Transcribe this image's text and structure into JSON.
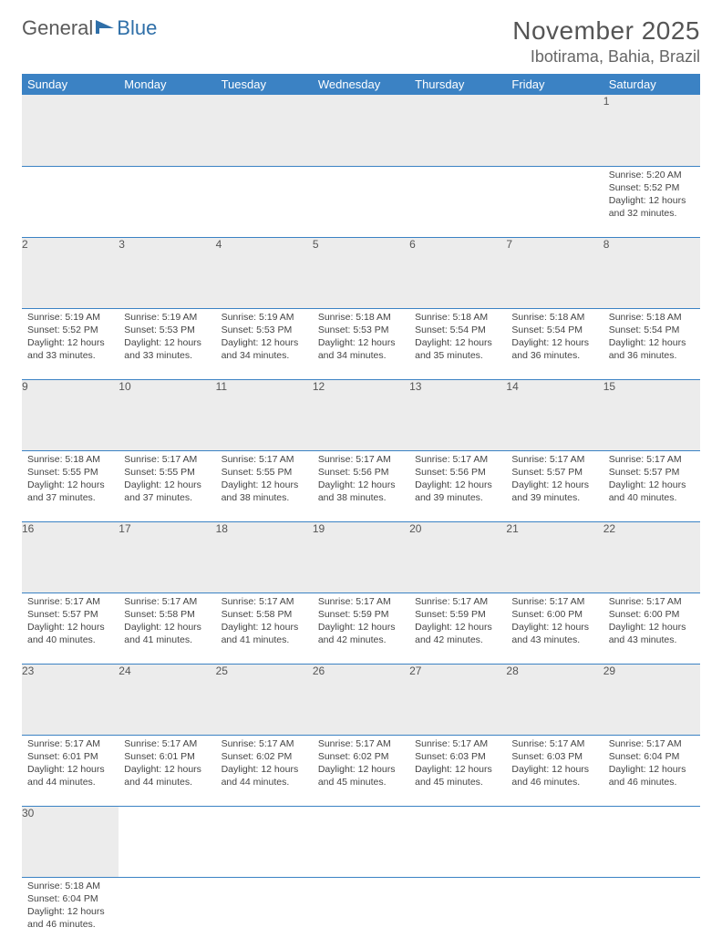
{
  "logo": {
    "text1": "General",
    "text2": "Blue"
  },
  "title": "November 2025",
  "location": "Ibotirama, Bahia, Brazil",
  "header_bg": "#3b82c4",
  "weekdays": [
    "Sunday",
    "Monday",
    "Tuesday",
    "Wednesday",
    "Thursday",
    "Friday",
    "Saturday"
  ],
  "weeks": [
    [
      null,
      null,
      null,
      null,
      null,
      null,
      {
        "n": "1",
        "sr": "5:20 AM",
        "ss": "5:52 PM",
        "dl": "12 hours and 32 minutes."
      }
    ],
    [
      {
        "n": "2",
        "sr": "5:19 AM",
        "ss": "5:52 PM",
        "dl": "12 hours and 33 minutes."
      },
      {
        "n": "3",
        "sr": "5:19 AM",
        "ss": "5:53 PM",
        "dl": "12 hours and 33 minutes."
      },
      {
        "n": "4",
        "sr": "5:19 AM",
        "ss": "5:53 PM",
        "dl": "12 hours and 34 minutes."
      },
      {
        "n": "5",
        "sr": "5:18 AM",
        "ss": "5:53 PM",
        "dl": "12 hours and 34 minutes."
      },
      {
        "n": "6",
        "sr": "5:18 AM",
        "ss": "5:54 PM",
        "dl": "12 hours and 35 minutes."
      },
      {
        "n": "7",
        "sr": "5:18 AM",
        "ss": "5:54 PM",
        "dl": "12 hours and 36 minutes."
      },
      {
        "n": "8",
        "sr": "5:18 AM",
        "ss": "5:54 PM",
        "dl": "12 hours and 36 minutes."
      }
    ],
    [
      {
        "n": "9",
        "sr": "5:18 AM",
        "ss": "5:55 PM",
        "dl": "12 hours and 37 minutes."
      },
      {
        "n": "10",
        "sr": "5:17 AM",
        "ss": "5:55 PM",
        "dl": "12 hours and 37 minutes."
      },
      {
        "n": "11",
        "sr": "5:17 AM",
        "ss": "5:55 PM",
        "dl": "12 hours and 38 minutes."
      },
      {
        "n": "12",
        "sr": "5:17 AM",
        "ss": "5:56 PM",
        "dl": "12 hours and 38 minutes."
      },
      {
        "n": "13",
        "sr": "5:17 AM",
        "ss": "5:56 PM",
        "dl": "12 hours and 39 minutes."
      },
      {
        "n": "14",
        "sr": "5:17 AM",
        "ss": "5:57 PM",
        "dl": "12 hours and 39 minutes."
      },
      {
        "n": "15",
        "sr": "5:17 AM",
        "ss": "5:57 PM",
        "dl": "12 hours and 40 minutes."
      }
    ],
    [
      {
        "n": "16",
        "sr": "5:17 AM",
        "ss": "5:57 PM",
        "dl": "12 hours and 40 minutes."
      },
      {
        "n": "17",
        "sr": "5:17 AM",
        "ss": "5:58 PM",
        "dl": "12 hours and 41 minutes."
      },
      {
        "n": "18",
        "sr": "5:17 AM",
        "ss": "5:58 PM",
        "dl": "12 hours and 41 minutes."
      },
      {
        "n": "19",
        "sr": "5:17 AM",
        "ss": "5:59 PM",
        "dl": "12 hours and 42 minutes."
      },
      {
        "n": "20",
        "sr": "5:17 AM",
        "ss": "5:59 PM",
        "dl": "12 hours and 42 minutes."
      },
      {
        "n": "21",
        "sr": "5:17 AM",
        "ss": "6:00 PM",
        "dl": "12 hours and 43 minutes."
      },
      {
        "n": "22",
        "sr": "5:17 AM",
        "ss": "6:00 PM",
        "dl": "12 hours and 43 minutes."
      }
    ],
    [
      {
        "n": "23",
        "sr": "5:17 AM",
        "ss": "6:01 PM",
        "dl": "12 hours and 44 minutes."
      },
      {
        "n": "24",
        "sr": "5:17 AM",
        "ss": "6:01 PM",
        "dl": "12 hours and 44 minutes."
      },
      {
        "n": "25",
        "sr": "5:17 AM",
        "ss": "6:02 PM",
        "dl": "12 hours and 44 minutes."
      },
      {
        "n": "26",
        "sr": "5:17 AM",
        "ss": "6:02 PM",
        "dl": "12 hours and 45 minutes."
      },
      {
        "n": "27",
        "sr": "5:17 AM",
        "ss": "6:03 PM",
        "dl": "12 hours and 45 minutes."
      },
      {
        "n": "28",
        "sr": "5:17 AM",
        "ss": "6:03 PM",
        "dl": "12 hours and 46 minutes."
      },
      {
        "n": "29",
        "sr": "5:17 AM",
        "ss": "6:04 PM",
        "dl": "12 hours and 46 minutes."
      }
    ],
    [
      {
        "n": "30",
        "sr": "5:18 AM",
        "ss": "6:04 PM",
        "dl": "12 hours and 46 minutes."
      },
      null,
      null,
      null,
      null,
      null,
      null
    ]
  ],
  "labels": {
    "sunrise": "Sunrise:",
    "sunset": "Sunset:",
    "daylight": "Daylight:"
  }
}
